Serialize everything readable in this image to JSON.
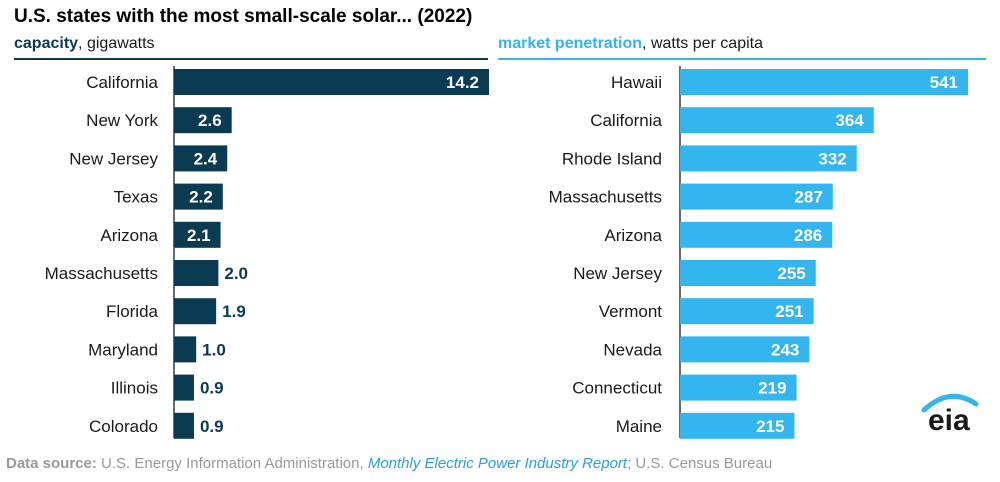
{
  "title": "U.S. states with the most small-scale solar... (2022)",
  "left_panel": {
    "header_strong": "capacity",
    "header_rest": ", gigawatts",
    "color": "#0b3a53"
  },
  "right_panel": {
    "header_strong": "market penetration",
    "header_rest": ", watts per capita",
    "color": "#33b6ef"
  },
  "source": {
    "label": "Data source:",
    "text1": " U.S. Energy Information Administration, ",
    "report": "Monthly Electric Power Industry Report",
    "text2": "; U.S. Census Bureau"
  },
  "logo_text": "eia",
  "chart_data": [
    {
      "type": "bar",
      "orientation": "horizontal",
      "categories": [
        "California",
        "New York",
        "New Jersey",
        "Texas",
        "Arizona",
        "Massachusetts",
        "Florida",
        "Maryland",
        "Illinois",
        "Colorado"
      ],
      "values": [
        14.2,
        2.6,
        2.4,
        2.2,
        2.1,
        2.0,
        1.9,
        1.0,
        0.9,
        0.9
      ],
      "value_labels": [
        "14.2",
        "2.6",
        "2.4",
        "2.2",
        "2.1",
        "2.0",
        "1.9",
        "1.0",
        "0.9",
        "0.9"
      ],
      "xlim": [
        0,
        14.2
      ],
      "color": "#0b3a53",
      "grid": false
    },
    {
      "type": "bar",
      "orientation": "horizontal",
      "categories": [
        "Hawaii",
        "California",
        "Rhode Island",
        "Massachusetts",
        "Arizona",
        "New Jersey",
        "Vermont",
        "Nevada",
        "Connecticut",
        "Maine"
      ],
      "values": [
        541,
        364,
        332,
        287,
        286,
        255,
        251,
        243,
        219,
        215
      ],
      "value_labels": [
        "541",
        "364",
        "332",
        "287",
        "286",
        "255",
        "251",
        "243",
        "219",
        "215"
      ],
      "xlim": [
        0,
        541
      ],
      "color": "#33b6ef",
      "grid": false
    }
  ]
}
